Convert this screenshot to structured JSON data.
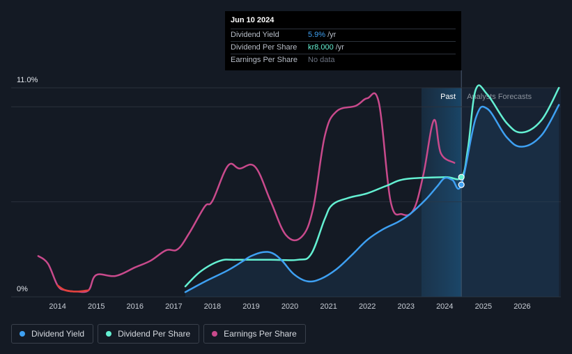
{
  "tooltip": {
    "date": "Jun 10 2024",
    "rows": [
      {
        "label": "Dividend Yield",
        "value": "5.9%",
        "unit": "/yr",
        "color": "#3ea0f2"
      },
      {
        "label": "Dividend Per Share",
        "value": "kr8.000",
        "unit": "/yr",
        "color": "#64f0d2"
      },
      {
        "label": "Earnings Per Share",
        "value": "No data",
        "unit": "",
        "color": "#6b7280"
      }
    ]
  },
  "legend": [
    {
      "label": "Dividend Yield",
      "color": "#3ea0f2"
    },
    {
      "label": "Dividend Per Share",
      "color": "#64f0d2"
    },
    {
      "label": "Earnings Per Share",
      "color": "#c94a8c"
    }
  ],
  "chart_data": {
    "type": "line",
    "title": "",
    "xlabel": "",
    "ylabel": "",
    "ylim": [
      0,
      11
    ],
    "y_tick_labels": [
      "0%",
      "11.0%"
    ],
    "x_tick_labels": [
      "2014",
      "2015",
      "2016",
      "2017",
      "2018",
      "2019",
      "2020",
      "2021",
      "2022",
      "2023",
      "2024",
      "2025",
      "2026"
    ],
    "x_tick_values": [
      2014,
      2015,
      2016,
      2017,
      2018,
      2019,
      2020,
      2021,
      2022,
      2023,
      2024,
      2025,
      2026
    ],
    "xlim": [
      2012.8,
      2027.0
    ],
    "regions": {
      "past_label": "Past",
      "forecast_label": "Analysts Forecasts",
      "past_start": 2023.4,
      "now": 2024.43
    },
    "series": [
      {
        "name": "Dividend Yield",
        "color": "#3ea0f2",
        "points": [
          [
            2017.3,
            0.25
          ],
          [
            2017.8,
            0.8
          ],
          [
            2018.4,
            1.4
          ],
          [
            2018.8,
            1.9
          ],
          [
            2019.0,
            2.15
          ],
          [
            2019.3,
            2.35
          ],
          [
            2019.55,
            2.3
          ],
          [
            2019.8,
            1.9
          ],
          [
            2020.1,
            1.2
          ],
          [
            2020.45,
            0.82
          ],
          [
            2020.8,
            0.95
          ],
          [
            2021.2,
            1.45
          ],
          [
            2021.6,
            2.2
          ],
          [
            2022.0,
            3.0
          ],
          [
            2022.4,
            3.55
          ],
          [
            2022.8,
            3.95
          ],
          [
            2023.1,
            4.35
          ],
          [
            2023.5,
            5.1
          ],
          [
            2023.8,
            5.8
          ],
          [
            2024.0,
            6.25
          ],
          [
            2024.2,
            6.15
          ],
          [
            2024.43,
            5.9
          ],
          [
            2024.8,
            9.4
          ],
          [
            2025.1,
            9.9
          ],
          [
            2025.6,
            8.4
          ],
          [
            2026.0,
            7.9
          ],
          [
            2026.5,
            8.5
          ],
          [
            2026.95,
            10.1
          ]
        ]
      },
      {
        "name": "Dividend Per Share",
        "color": "#64f0d2",
        "points": [
          [
            2017.3,
            0.55
          ],
          [
            2017.7,
            1.35
          ],
          [
            2018.2,
            1.9
          ],
          [
            2018.6,
            1.95
          ],
          [
            2019.5,
            1.95
          ],
          [
            2020.2,
            1.95
          ],
          [
            2020.55,
            2.25
          ],
          [
            2020.9,
            4.1
          ],
          [
            2021.1,
            4.85
          ],
          [
            2021.5,
            5.2
          ],
          [
            2022.0,
            5.45
          ],
          [
            2022.5,
            5.85
          ],
          [
            2023.0,
            6.2
          ],
          [
            2024.0,
            6.3
          ],
          [
            2024.43,
            6.3
          ],
          [
            2024.6,
            7.8
          ],
          [
            2024.8,
            10.9
          ],
          [
            2025.1,
            10.65
          ],
          [
            2025.6,
            9.15
          ],
          [
            2026.0,
            8.65
          ],
          [
            2026.5,
            9.3
          ],
          [
            2026.95,
            11.0
          ]
        ]
      },
      {
        "name": "Earnings Per Share",
        "color": "#c94a8c",
        "negative_color": "#e0413b",
        "points": [
          [
            2013.5,
            2.15
          ],
          [
            2013.75,
            1.75
          ],
          [
            2014.0,
            0.6
          ],
          [
            2014.2,
            0.35
          ],
          [
            2014.5,
            0.28
          ],
          [
            2014.8,
            0.35
          ],
          [
            2015.0,
            1.15
          ],
          [
            2015.5,
            1.1
          ],
          [
            2016.0,
            1.55
          ],
          [
            2016.4,
            1.9
          ],
          [
            2016.8,
            2.45
          ],
          [
            2017.1,
            2.5
          ],
          [
            2017.4,
            3.35
          ],
          [
            2017.8,
            4.75
          ],
          [
            2018.0,
            5.05
          ],
          [
            2018.4,
            6.9
          ],
          [
            2018.7,
            6.75
          ],
          [
            2019.1,
            6.85
          ],
          [
            2019.5,
            5.05
          ],
          [
            2019.9,
            3.25
          ],
          [
            2020.3,
            3.15
          ],
          [
            2020.6,
            4.65
          ],
          [
            2020.9,
            8.45
          ],
          [
            2021.2,
            9.75
          ],
          [
            2021.7,
            10.05
          ],
          [
            2022.0,
            10.45
          ],
          [
            2022.3,
            10.2
          ],
          [
            2022.6,
            5.05
          ],
          [
            2022.9,
            4.35
          ],
          [
            2023.2,
            4.6
          ],
          [
            2023.45,
            6.45
          ],
          [
            2023.72,
            9.3
          ],
          [
            2023.9,
            7.55
          ],
          [
            2024.25,
            7.05
          ]
        ]
      }
    ]
  }
}
